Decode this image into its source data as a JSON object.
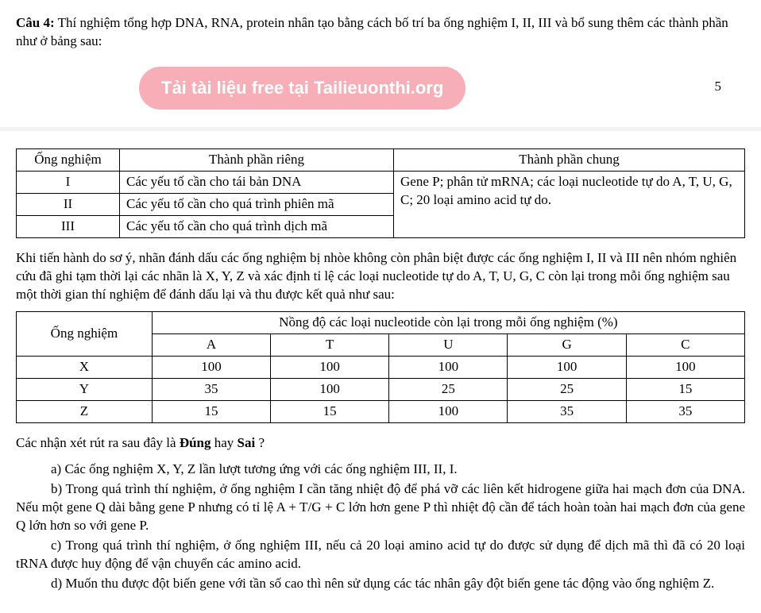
{
  "question": {
    "label": "Câu 4:",
    "intro": "Thí nghiệm tổng hợp DNA, RNA,  protein nhân tạo bằng cách bố trí ba ống nghiệm I, II, III và bổ sung thêm các thành phần như ở bảng sau:"
  },
  "watermark": {
    "text": "Tải tài liệu free tại Tailieuonthi.org",
    "page_number": "5"
  },
  "table1": {
    "headers": {
      "c1": "Ống nghiệm",
      "c2": "Thành phần riêng",
      "c3": "Thành phần chung"
    },
    "rows": [
      {
        "tube": "I",
        "own": "Các yếu tố cần cho tái bản DNA"
      },
      {
        "tube": "II",
        "own": "Các yếu tố cần cho quá trình phiên mã"
      },
      {
        "tube": "III",
        "own": "Các yếu tố cần cho quá trình dịch mã"
      }
    ],
    "common": "Gene P; phân tử mRNA; các loại nucleotide tự do A, T, U, G, C; 20 loại amino acid tự do."
  },
  "mid_paragraph": "Khi tiến hành do sơ ý, nhãn đánh dấu các ống nghiệm bị nhòe không còn phân biệt được các ống nghiệm I, II và III nên nhóm nghiên cứu đã ghi tạm thời lại các nhãn là X, Y, Z và xác định tỉ lệ các loại nucleotide tự do A, T, U, G, C còn lại trong mỗi ống nghiệm sau một thời gian thí nghiệm để đánh dấu lại và thu được kết quả như sau:",
  "table2": {
    "top_header": "Nồng độ các loại nucleotide còn lại trong mỗi ống nghiệm (%)",
    "row_header": "Ống nghiệm",
    "cols": [
      "A",
      "T",
      "U",
      "G",
      "C"
    ],
    "rows": [
      {
        "tube": "X",
        "vals": [
          "100",
          "100",
          "100",
          "100",
          "100"
        ]
      },
      {
        "tube": "Y",
        "vals": [
          "35",
          "100",
          "25",
          "25",
          "15"
        ]
      },
      {
        "tube": "Z",
        "vals": [
          "15",
          "15",
          "100",
          "35",
          "35"
        ]
      }
    ]
  },
  "follow_q": {
    "lead": "Các nhận xét rút ra sau đây là ",
    "bold1": "Đúng",
    "mid": " hay ",
    "bold2": "Sai",
    "tail": " ?"
  },
  "options": {
    "a": "a) Các ống nghiệm X, Y, Z lần lượt tương ứng với các ống nghiệm III, II, I.",
    "b": "b) Trong quá trình thí nghiệm, ở ống nghiệm I cần tăng nhiệt độ để phá vỡ các liên kết hidrogene giữa hai mạch đơn của DNA. Nếu một gene Q dài bằng gene P nhưng có tỉ lệ  A + T/G + C lớn hơn gene P thì nhiệt độ cần để tách hoàn toàn hai mạch đơn của gene Q lớn hơn so với gene P.",
    "c": "c) Trong quá trình thí nghiệm, ở ống nghiệm III, nếu cả 20 loại amino acid tự do được sử dụng để dịch mã thì đã có 20 loại tRNA được huy động để vận chuyển các amino acid.",
    "d": "d) Muốn thu được đột biến gene với tần số cao thì nên sử dụng các tác nhân gây đột biến gene tác động vào ống nghiệm Z."
  }
}
